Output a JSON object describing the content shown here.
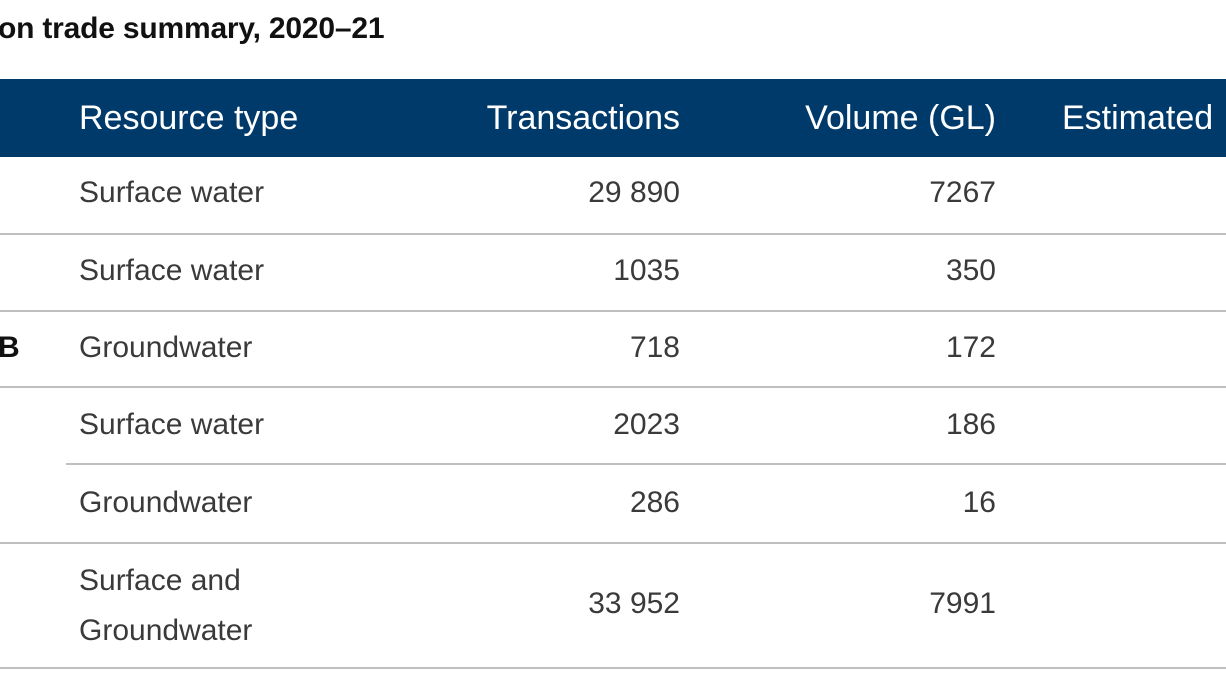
{
  "table": {
    "title": "on trade summary, 2020–21",
    "headers": {
      "resource_type": "Resource type",
      "transactions": "Transactions",
      "volume": "Volume (GL)",
      "estimated": "Estimated"
    },
    "rows": [
      {
        "label": "",
        "resource_type": "Surface water",
        "transactions": "29 890",
        "volume": "7267"
      },
      {
        "label": "",
        "resource_type": "Surface water",
        "transactions": "1035",
        "volume": "350"
      },
      {
        "label": "B",
        "resource_type": "Groundwater",
        "transactions": "718",
        "volume": "172"
      },
      {
        "label": "",
        "resource_type": "Surface water",
        "transactions": "2023",
        "volume": "186"
      },
      {
        "label": "",
        "resource_type": "Groundwater",
        "transactions": "286",
        "volume": "16"
      },
      {
        "label": "",
        "resource_type_line1": "Surface and",
        "resource_type_line2": "Groundwater",
        "transactions": "33 952",
        "volume": "7991"
      }
    ]
  }
}
